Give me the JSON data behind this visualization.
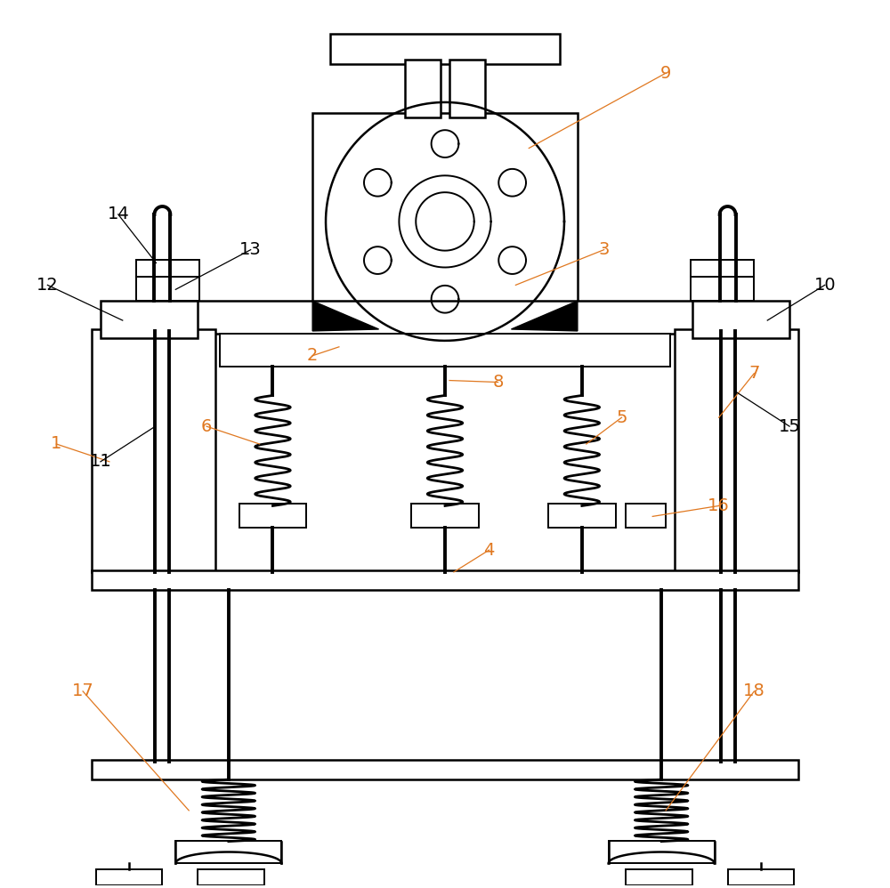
{
  "bg_color": "#ffffff",
  "line_color": "#000000",
  "orange": "#e07820",
  "black": "#000000"
}
